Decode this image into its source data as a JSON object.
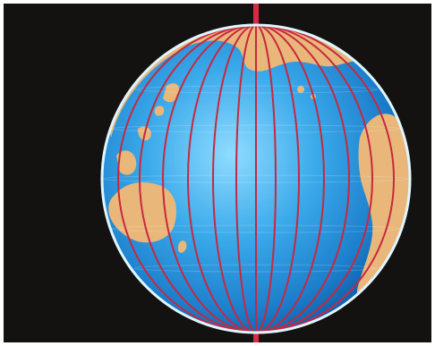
{
  "image": {
    "subject": "globe-with-meridians",
    "colors": {
      "background": "#141211",
      "ocean_light": "#8fdcff",
      "ocean_mid": "#2f9fe2",
      "ocean_dark": "#0f5ea8",
      "land": "#e9b77a",
      "meridian": "#c7283f",
      "axis": "#d62a45",
      "rim": "#dff6ff"
    }
  }
}
